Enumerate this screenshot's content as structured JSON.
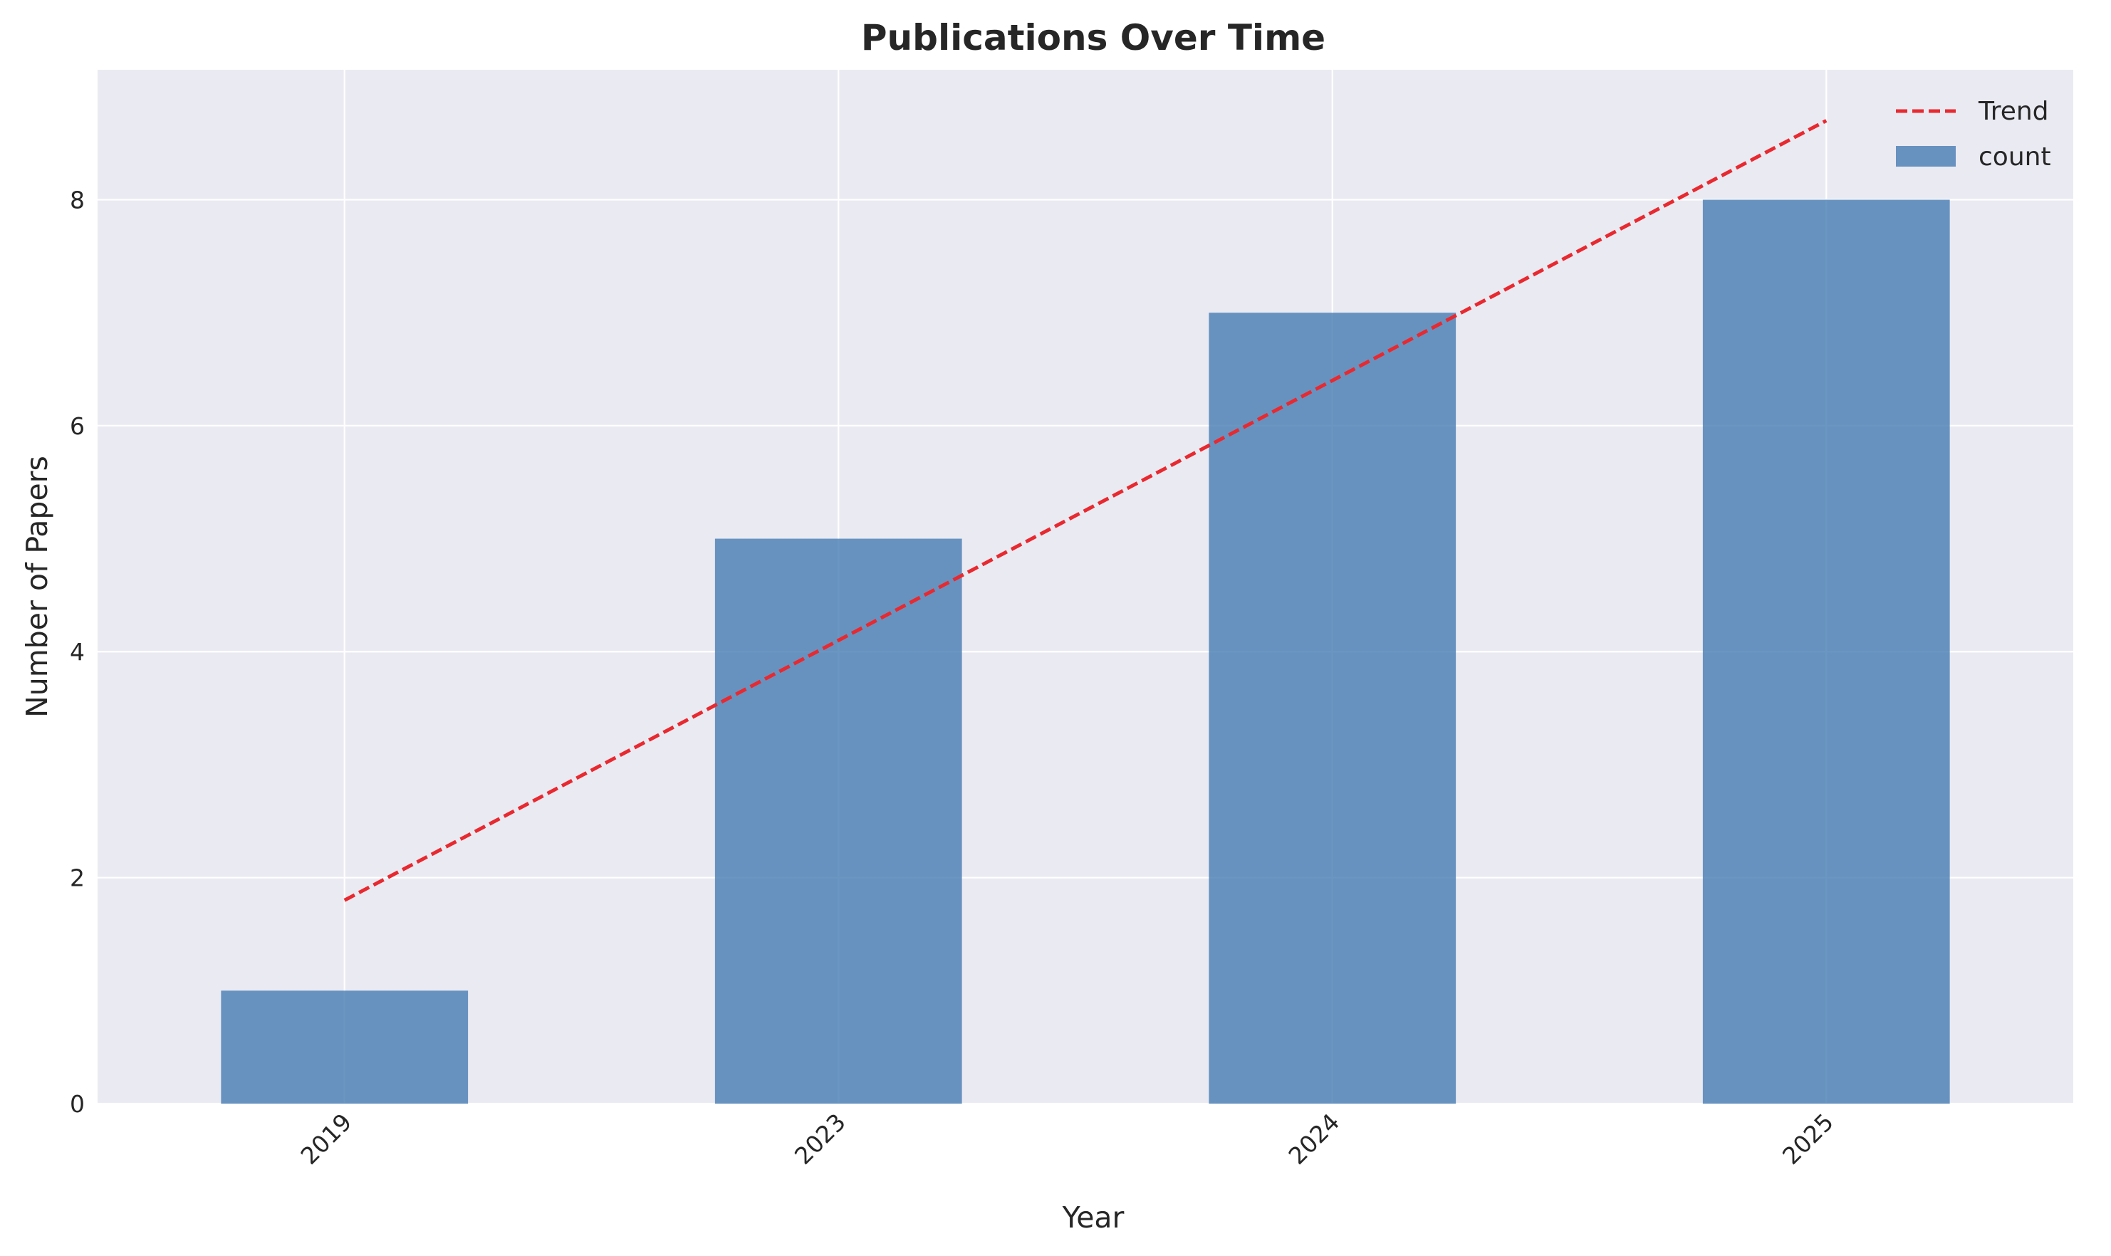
{
  "chart_data": {
    "type": "bar",
    "title": "Publications Over Time",
    "xlabel": "Year",
    "ylabel": "Number of Papers",
    "categories": [
      "2019",
      "2023",
      "2024",
      "2025"
    ],
    "series": [
      {
        "name": "count",
        "type": "bar",
        "values": [
          1,
          5,
          7,
          8
        ],
        "color": "#4a7fb5"
      },
      {
        "name": "Trend",
        "type": "line",
        "style": "dashed",
        "values": [
          1.8,
          4.1,
          6.4,
          8.7
        ],
        "color": "#e8292f"
      }
    ],
    "ylim": [
      0,
      9.15
    ],
    "yticks": [
      0,
      2,
      4,
      6,
      8
    ],
    "grid": true,
    "legend": "top-right",
    "background": "#eaeaf2"
  }
}
